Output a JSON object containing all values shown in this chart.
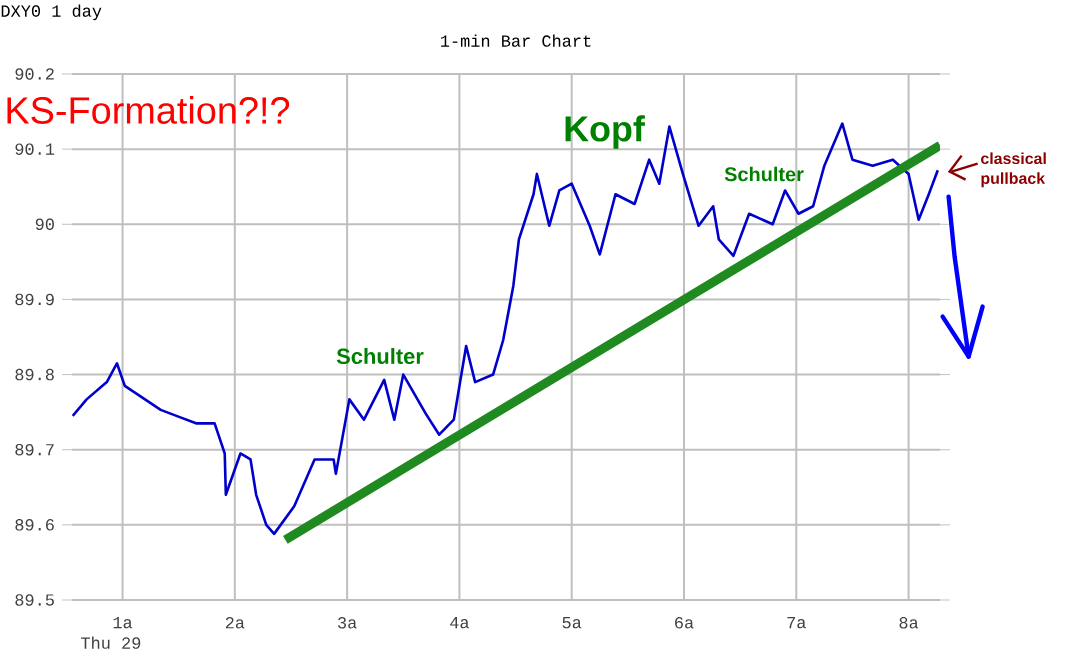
{
  "chart_data": {
    "type": "line",
    "title": "DXY0 1 day",
    "subtitle": "1-min Bar Chart",
    "xlabel": "Thu 29",
    "xlim": [
      0.55,
      8.28
    ],
    "ylim": [
      89.5,
      90.2
    ],
    "xticks": [
      {
        "value": 1,
        "label": "1a"
      },
      {
        "value": 2,
        "label": "2a"
      },
      {
        "value": 3,
        "label": "3a"
      },
      {
        "value": 4,
        "label": "4a"
      },
      {
        "value": 5,
        "label": "5a"
      },
      {
        "value": 6,
        "label": "6a"
      },
      {
        "value": 7,
        "label": "7a"
      },
      {
        "value": 8,
        "label": "8a"
      }
    ],
    "yticks": [
      89.5,
      89.6,
      89.7,
      89.8,
      89.9,
      90,
      90.1,
      90.2
    ],
    "grid": true,
    "marker": "none",
    "line_style": "solid",
    "series": [
      {
        "color": "#0000cc",
        "x": [
          0.556,
          0.68,
          0.86,
          0.95,
          1.02,
          1.2,
          1.34,
          1.48,
          1.66,
          1.82,
          1.91,
          1.92,
          2.05,
          2.14,
          2.19,
          2.28,
          2.35,
          2.53,
          2.71,
          2.88,
          2.9,
          3.02,
          3.15,
          3.33,
          3.42,
          3.5,
          3.7,
          3.82,
          3.95,
          4.06,
          4.14,
          4.3,
          4.39,
          4.48,
          4.53,
          4.66,
          4.69,
          4.8,
          4.89,
          5.0,
          5.16,
          5.25,
          5.39,
          5.56,
          5.69,
          5.78,
          5.87,
          5.99,
          6.13,
          6.26,
          6.31,
          6.44,
          6.58,
          6.79,
          6.9,
          7.02,
          7.15,
          7.25,
          7.41,
          7.5,
          7.68,
          7.86,
          8.0,
          8.09,
          8.18,
          8.26
        ],
        "values": [
          89.745,
          89.767,
          89.79,
          89.815,
          89.785,
          89.767,
          89.753,
          89.745,
          89.735,
          89.735,
          89.695,
          89.64,
          89.695,
          89.687,
          89.64,
          89.6,
          89.588,
          89.625,
          89.687,
          89.687,
          89.668,
          89.767,
          89.74,
          89.793,
          89.74,
          89.8,
          89.748,
          89.72,
          89.74,
          89.838,
          89.79,
          89.8,
          89.846,
          89.918,
          89.98,
          90.04,
          90.067,
          89.998,
          90.045,
          90.054,
          89.998,
          89.96,
          90.04,
          90.027,
          90.086,
          90.054,
          90.13,
          90.067,
          89.998,
          90.024,
          89.98,
          89.958,
          90.014,
          90.0,
          90.045,
          90.014,
          90.024,
          90.078,
          90.134,
          90.086,
          90.078,
          90.086,
          90.067,
          90.006,
          90.04,
          90.072
        ]
      },
      {
        "type": "line",
        "color": "#1f8a1f",
        "x": [
          2.45,
          8.28
        ],
        "values": [
          89.58,
          90.105
        ]
      }
    ],
    "annotations": [
      "KS-Formation?!?",
      "Schulter",
      "Kopf",
      "Schulter",
      "classical pullback"
    ]
  }
}
